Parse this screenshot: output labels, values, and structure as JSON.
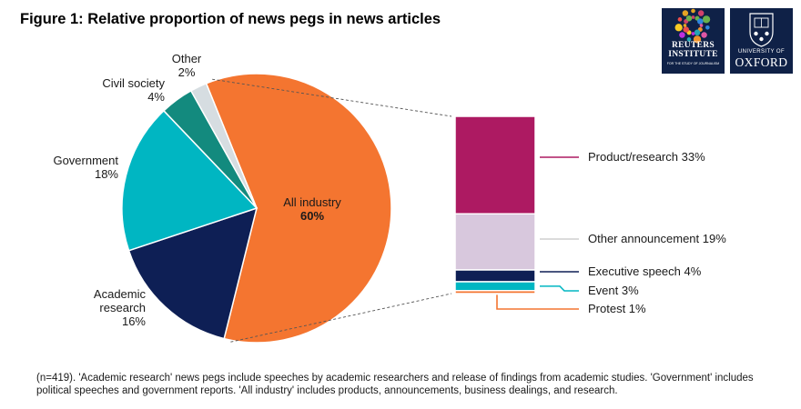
{
  "chart_data": {
    "title": "Figure 1: Relative proportion of news pegs in news articles",
    "pie": {
      "type": "pie",
      "slices": [
        {
          "name": "All industry",
          "value": 60,
          "label": "60%",
          "color": "#f47530"
        },
        {
          "name": "Academic research",
          "value": 16,
          "label": "16%",
          "color": "#0e1f55"
        },
        {
          "name": "Government",
          "value": 18,
          "label": "18%",
          "color": "#00b6c2"
        },
        {
          "name": "Civil society",
          "value": 4,
          "label": "4%",
          "color": "#138a7e"
        },
        {
          "name": "Other",
          "value": 2,
          "label": "2%",
          "color": "#d6dde1"
        }
      ]
    },
    "breakdown": {
      "type": "bar",
      "of": "All industry",
      "segments": [
        {
          "name": "Product/research",
          "value": 33,
          "label": "Product/research 33%",
          "color": "#ad1a62"
        },
        {
          "name": "Other announcement",
          "value": 19,
          "label": "Other announcement 19%",
          "color": "#d8c8dd",
          "line_color": "#cfcfcf"
        },
        {
          "name": "Executive speech",
          "value": 4,
          "label": "Executive speech 4%",
          "color": "#0e1f55"
        },
        {
          "name": "Event",
          "value": 3,
          "label": "Event 3%",
          "color": "#00b6c2"
        },
        {
          "name": "Protest",
          "value": 1,
          "label": "Protest 1%",
          "color": "#f47530"
        }
      ]
    }
  },
  "logos": {
    "rise_line1": "REUTERS",
    "rise_line2": "INSTITUTE",
    "rise_sub": "FOR THE STUDY OF JOURNALISM",
    "oxford_line1": "UNIVERSITY OF",
    "oxford_line2": "OXFORD"
  },
  "footnote": "(n=419). 'Academic research' news pegs include speeches by academic researchers and release of findings from academic studies. 'Government' includes political speeches and government reports. 'All industry' includes products, announcements, business dealings, and research."
}
